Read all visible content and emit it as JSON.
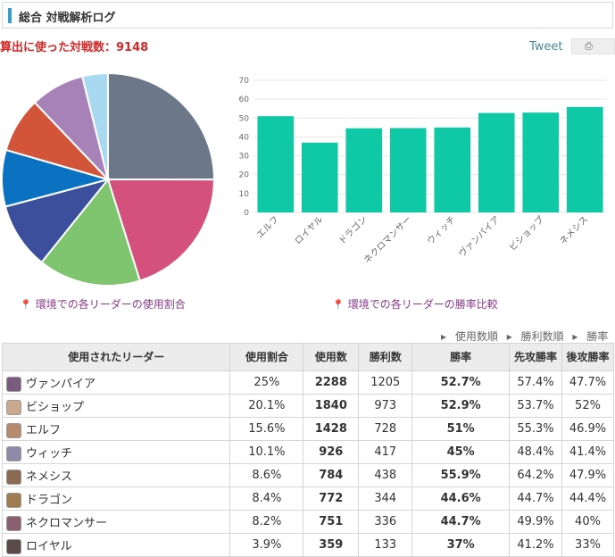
{
  "header": {
    "title": "総合 対戦解析ログ"
  },
  "total_battles_label": "算出に使った対戦数：9148",
  "tweet": {
    "label": "Tweet",
    "save_icon": "document-icon"
  },
  "captions": {
    "pie": "環境での各リーダーの使用割合",
    "bar": "環境での各リーダーの勝率比較"
  },
  "sort_links": [
    "使用数順",
    "勝利数順",
    "勝率順"
  ],
  "chart_data": [
    {
      "type": "pie",
      "categories": [
        "ヴァンパイア",
        "ビショップ",
        "エルフ",
        "ウィッチ",
        "ネメシス",
        "ドラゴン",
        "ネクロマンサー",
        "ロイヤル"
      ],
      "values": [
        25,
        20.1,
        15.6,
        10.1,
        8.6,
        8.4,
        8.2,
        3.9
      ],
      "colors": [
        "#6c7889",
        "#d4517e",
        "#7fc46f",
        "#3b4f9c",
        "#0a72c1",
        "#d2553a",
        "#a782b9",
        "#a9d8f1"
      ]
    },
    {
      "type": "bar",
      "categories": [
        "エルフ",
        "ロイヤル",
        "ドラゴン",
        "ネクロマンサー",
        "ウィッチ",
        "ヴァンパイア",
        "ビショップ",
        "ネメシス"
      ],
      "values": [
        51,
        37,
        44.6,
        44.7,
        45,
        52.7,
        52.9,
        55.9
      ],
      "ylim": [
        0,
        70
      ],
      "yticks": [
        0,
        10,
        20,
        30,
        40,
        50,
        60,
        70
      ],
      "grid": true,
      "color": "#0fc8a6"
    }
  ],
  "table": {
    "headers": [
      "使用されたリーダー",
      "使用割合",
      "使用数",
      "勝利数",
      "勝率",
      "先攻勝率",
      "後攻勝率"
    ],
    "rows": [
      {
        "leader": "ヴァンパイア",
        "share": "25%",
        "uses": "2288",
        "wins": "1205",
        "winrate": "52.7%",
        "first": "57.4%",
        "second": "47.7%",
        "hi": true,
        "avatar": "#7a5c7e"
      },
      {
        "leader": "ビショップ",
        "share": "20.1%",
        "uses": "1840",
        "wins": "973",
        "winrate": "52.9%",
        "first": "53.7%",
        "second": "52%",
        "hi": true,
        "avatar": "#c9a98e"
      },
      {
        "leader": "エルフ",
        "share": "15.6%",
        "uses": "1428",
        "wins": "728",
        "winrate": "51%",
        "first": "55.3%",
        "second": "46.9%",
        "hi": true,
        "avatar": "#b68a6c"
      },
      {
        "leader": "ウィッチ",
        "share": "10.1%",
        "uses": "926",
        "wins": "417",
        "winrate": "45%",
        "first": "48.4%",
        "second": "41.4%",
        "hi": false,
        "avatar": "#8e8aa8"
      },
      {
        "leader": "ネメシス",
        "share": "8.6%",
        "uses": "784",
        "wins": "438",
        "winrate": "55.9%",
        "first": "64.2%",
        "second": "47.9%",
        "hi": true,
        "avatar": "#8c6a52"
      },
      {
        "leader": "ドラゴン",
        "share": "8.4%",
        "uses": "772",
        "wins": "344",
        "winrate": "44.6%",
        "first": "44.7%",
        "second": "44.4%",
        "hi": false,
        "avatar": "#a07a50"
      },
      {
        "leader": "ネクロマンサー",
        "share": "8.2%",
        "uses": "751",
        "wins": "336",
        "winrate": "44.7%",
        "first": "49.9%",
        "second": "40%",
        "hi": false,
        "avatar": "#8a6070"
      },
      {
        "leader": "ロイヤル",
        "share": "3.9%",
        "uses": "359",
        "wins": "133",
        "winrate": "37%",
        "first": "41.2%",
        "second": "33%",
        "hi": false,
        "avatar": "#5a4a48"
      }
    ]
  }
}
